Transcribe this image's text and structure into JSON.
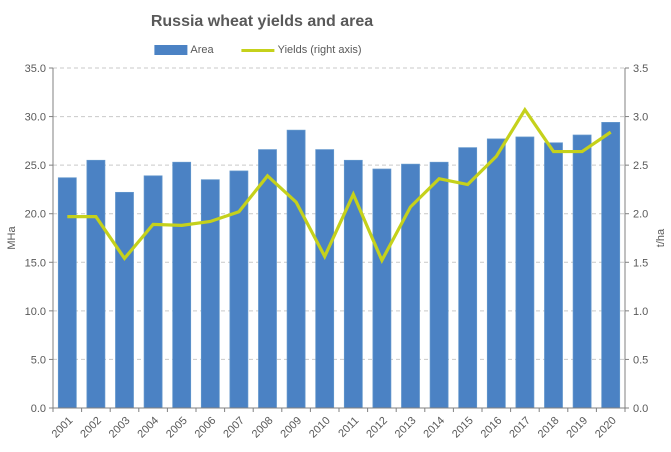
{
  "chart_data": {
    "type": "bar+line",
    "title": "Russia wheat yields and area",
    "categories": [
      "2001",
      "2002",
      "2003",
      "2004",
      "2005",
      "2006",
      "2007",
      "2008",
      "2009",
      "2010",
      "2011",
      "2012",
      "2013",
      "2014",
      "2015",
      "2016",
      "2017",
      "2018",
      "2019",
      "2020"
    ],
    "series": [
      {
        "name": "Area",
        "kind": "bar",
        "axis": "left",
        "color": "#4b82c4",
        "values": [
          23.7,
          25.5,
          22.2,
          23.9,
          25.3,
          23.5,
          24.4,
          26.6,
          28.6,
          26.6,
          25.5,
          24.6,
          25.1,
          25.3,
          26.8,
          27.7,
          27.9,
          27.3,
          28.1,
          29.4
        ]
      },
      {
        "name": "Yields (right axis)",
        "kind": "line",
        "axis": "right",
        "color": "#c5d11b",
        "values": [
          1.97,
          1.97,
          1.54,
          1.89,
          1.88,
          1.92,
          2.02,
          2.39,
          2.12,
          1.56,
          2.2,
          1.52,
          2.07,
          2.36,
          2.3,
          2.59,
          3.07,
          2.64,
          2.64,
          2.84
        ]
      }
    ],
    "left_axis": {
      "label": "MHa",
      "min": 0,
      "max": 35,
      "step": 5,
      "tick_labels": [
        "0.0",
        "5.0",
        "10.0",
        "15.0",
        "20.0",
        "25.0",
        "30.0",
        "35.0"
      ]
    },
    "right_axis": {
      "label": "t/ha",
      "min": 0,
      "max": 3.5,
      "step": 0.5,
      "tick_labels": [
        "0.0",
        "0.5",
        "1.0",
        "1.5",
        "2.0",
        "2.5",
        "3.0",
        "3.5"
      ]
    },
    "grid": {
      "horizontal": true,
      "style": "dashed",
      "color": "#c9c9c9"
    },
    "legend_position": "top",
    "text_color": "#595959",
    "axis_line_color": "#808080"
  }
}
